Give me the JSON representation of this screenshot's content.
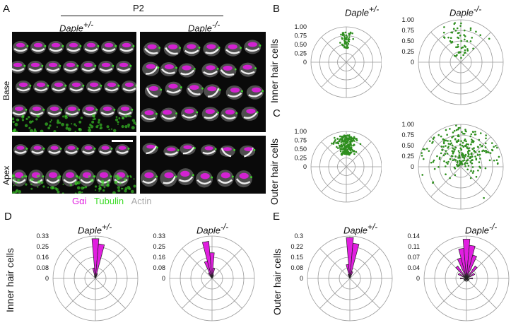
{
  "panel_labels": [
    "A",
    "B",
    "C",
    "D",
    "E"
  ],
  "panelA": {
    "age": "P2",
    "genotypes": [
      "Daple+/-",
      "Daple-/-"
    ],
    "rows": [
      "Base",
      "Apex"
    ],
    "legend": [
      {
        "text": "Gαi",
        "color": "#e11ee0"
      },
      {
        "text": "Tubulin",
        "color": "#3fdc2a"
      },
      {
        "text": "Actin",
        "color": "#b8b8b8"
      }
    ]
  },
  "row_titles": {
    "B": "Inner hair cells",
    "C": "Outer hair cells",
    "D": "Inner hair cells",
    "E": "Outer hair cells"
  },
  "genotype_titles": {
    "het_base": "Daple",
    "het_sup": "+/-",
    "ko_base": "Daple",
    "ko_sup": "-/-"
  },
  "polar_ticks": [
    "1.00",
    "0.75",
    "0.50",
    "0.25",
    "0"
  ],
  "rose_ticks": {
    "D_het": [
      "0.33",
      "0.25",
      "0.16",
      "0.08",
      "0"
    ],
    "D_ko": [
      "0.33",
      "0.25",
      "0.16",
      "0.08",
      "0"
    ],
    "E_het": [
      "0.3",
      "0.22",
      "0.15",
      "0.08",
      "0"
    ],
    "E_ko": [
      "0.14",
      "0.11",
      "0.07",
      "0.04",
      "0"
    ]
  },
  "chart_data": [
    {
      "type": "scatter",
      "panel": "B-left",
      "polar": true,
      "rlim": [
        0,
        1
      ],
      "desc_series": "IHC Daple+/-",
      "spread_deg": 25,
      "radius_range": [
        0.4,
        0.85
      ],
      "n_points": 60
    },
    {
      "type": "scatter",
      "panel": "B-right",
      "polar": true,
      "rlim": [
        0,
        1
      ],
      "desc_series": "IHC Daple-/-",
      "spread_deg": 70,
      "radius_range": [
        0.1,
        0.95
      ],
      "n_points": 60
    },
    {
      "type": "scatter",
      "panel": "C-left",
      "polar": true,
      "rlim": [
        0,
        1
      ],
      "desc_series": "OHC Daple+/-",
      "spread_deg": 45,
      "radius_range": [
        0.35,
        0.9
      ],
      "n_points": 220
    },
    {
      "type": "scatter",
      "panel": "C-right",
      "polar": true,
      "rlim": [
        0,
        1
      ],
      "desc_series": "OHC Daple-/-",
      "spread_deg": 180,
      "radius_range": [
        0.05,
        0.98
      ],
      "n_points": 260
    },
    {
      "type": "bar",
      "panel": "D-left",
      "polar": true,
      "rlim": [
        0,
        0.33
      ],
      "bins_deg": [
        -20,
        -10,
        0,
        10,
        20
      ],
      "values": [
        0.02,
        0.08,
        0.31,
        0.27,
        0.04
      ]
    },
    {
      "type": "bar",
      "panel": "D-right",
      "polar": true,
      "rlim": [
        0,
        0.33
      ],
      "bins_deg": [
        -30,
        -20,
        -10,
        0,
        10,
        20
      ],
      "values": [
        0.05,
        0.14,
        0.29,
        0.2,
        0.08,
        0.03
      ]
    },
    {
      "type": "bar",
      "panel": "E-left",
      "polar": true,
      "rlim": [
        0,
        0.3
      ],
      "bins_deg": [
        -20,
        -10,
        0,
        10,
        20
      ],
      "values": [
        0.03,
        0.1,
        0.29,
        0.25,
        0.05
      ]
    },
    {
      "type": "bar",
      "panel": "E-right",
      "polar": true,
      "rlim": [
        0,
        0.14
      ],
      "bins_deg": [
        -90,
        -60,
        -40,
        -20,
        -10,
        0,
        10,
        20,
        40,
        60,
        90,
        120,
        150,
        180,
        -120,
        -150
      ],
      "values": [
        0.02,
        0.03,
        0.05,
        0.07,
        0.1,
        0.13,
        0.11,
        0.08,
        0.05,
        0.03,
        0.02,
        0.01,
        0.01,
        0.01,
        0.01,
        0.01
      ]
    }
  ]
}
